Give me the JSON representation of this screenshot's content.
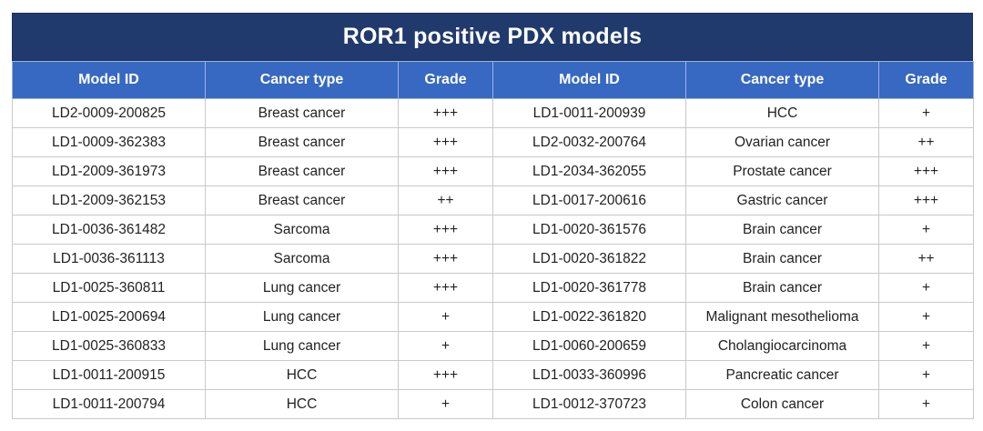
{
  "title": "ROR1 positive PDX models",
  "headers": [
    "Model ID",
    "Cancer type",
    "Grade",
    "Model ID",
    "Cancer type",
    "Grade"
  ],
  "rows": [
    [
      "LD2-0009-200825",
      "Breast cancer",
      "+++",
      "LD1-0011-200939",
      "HCC",
      "+"
    ],
    [
      "LD1-0009-362383",
      "Breast cancer",
      "+++",
      "LD2-0032-200764",
      "Ovarian cancer",
      "++"
    ],
    [
      "LD1-2009-361973",
      "Breast cancer",
      "+++",
      "LD1-2034-362055",
      "Prostate cancer",
      "+++"
    ],
    [
      "LD1-2009-362153",
      "Breast cancer",
      "++",
      "LD1-0017-200616",
      "Gastric cancer",
      "+++"
    ],
    [
      "LD1-0036-361482",
      "Sarcoma",
      "+++",
      "LD1-0020-361576",
      "Brain cancer",
      "+"
    ],
    [
      "LD1-0036-361113",
      "Sarcoma",
      "+++",
      "LD1-0020-361822",
      "Brain cancer",
      "++"
    ],
    [
      "LD1-0025-360811",
      "Lung cancer",
      "+++",
      "LD1-0020-361778",
      "Brain cancer",
      "+"
    ],
    [
      "LD1-0025-200694",
      "Lung cancer",
      "+",
      "LD1-0022-361820",
      "Malignant mesothelioma",
      "+"
    ],
    [
      "LD1-0025-360833",
      "Lung cancer",
      "+",
      "LD1-0060-200659",
      "Cholangiocarcinoma",
      "+"
    ],
    [
      "LD1-0011-200915",
      "HCC",
      "+++",
      "LD1-0033-360996",
      "Pancreatic cancer",
      "+"
    ],
    [
      "LD1-0011-200794",
      "HCC",
      "+",
      "LD1-0012-370723",
      "Colon cancer",
      "+"
    ]
  ]
}
